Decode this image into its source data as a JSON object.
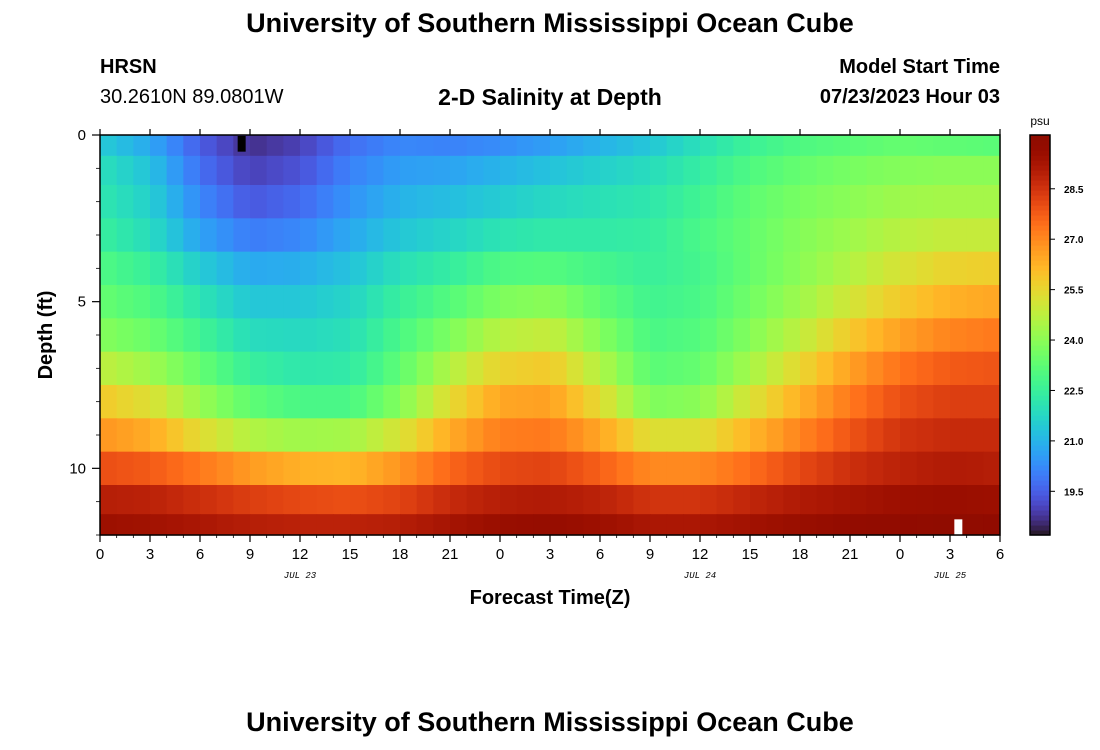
{
  "header": {
    "title": "University of Southern Mississippi Ocean Cube",
    "station": "HRSN",
    "coordinates": "30.2610N  89.0801W",
    "subtitle": "2-D Salinity at Depth",
    "model_start_label": "Model Start Time",
    "model_start_value": "07/23/2023 Hour 03"
  },
  "footer": {
    "title": "University of Southern Mississippi Ocean Cube"
  },
  "chart_data": {
    "type": "heatmap",
    "title": "2-D Salinity at Depth",
    "xlabel": "Forecast Time(Z)",
    "ylabel": "Depth (ft)",
    "x_tick_labels": [
      "0",
      "3",
      "6",
      "9",
      "12",
      "15",
      "18",
      "21",
      "0",
      "3",
      "6",
      "9",
      "12",
      "15",
      "18",
      "21",
      "0",
      "3",
      "6"
    ],
    "x_range_hours": [
      0,
      54
    ],
    "date_labels": [
      {
        "label": "JUL 23",
        "hour": 12
      },
      {
        "label": "JUL 24",
        "hour": 36
      },
      {
        "label": "JUL 25",
        "hour": 51
      }
    ],
    "y_ticks": [
      0,
      5,
      10
    ],
    "y_range": [
      0,
      12
    ],
    "y_inverted": true,
    "colorbar": {
      "unit": "psu",
      "ticks": [
        19.5,
        21.0,
        22.5,
        24.0,
        25.5,
        27.0,
        28.5
      ],
      "tick_labels": [
        "19.5",
        "21.0",
        "22.5",
        "24.0",
        "25.5",
        "27.0",
        "28.5"
      ],
      "range": [
        18.2,
        30.1
      ],
      "colormap": "turbo"
    },
    "grid": false,
    "layer_depths_ft": [
      0.25,
      1,
      2,
      3,
      4,
      5,
      6,
      7,
      8,
      9,
      10,
      11,
      11.75
    ],
    "time_anchor_hours": [
      0,
      3,
      6,
      9,
      12,
      15,
      18,
      21,
      24,
      27,
      30,
      33,
      36,
      39,
      42,
      45,
      48,
      51,
      54
    ],
    "salinity_psu": [
      [
        21.5,
        20.8,
        19.5,
        18.7,
        19.0,
        19.8,
        20.2,
        20.1,
        20.3,
        20.6,
        21.0,
        21.4,
        22.0,
        22.6,
        23.0,
        23.2,
        23.4,
        23.3,
        23.2
      ],
      [
        22.0,
        21.3,
        19.8,
        19.0,
        19.3,
        20.1,
        20.6,
        20.7,
        21.0,
        21.3,
        21.6,
        21.9,
        22.4,
        23.0,
        23.4,
        23.7,
        23.9,
        24.0,
        24.0
      ],
      [
        22.2,
        21.6,
        20.2,
        19.4,
        19.7,
        20.4,
        21.0,
        21.2,
        21.5,
        21.8,
        22.0,
        22.2,
        22.7,
        23.3,
        23.7,
        24.0,
        24.3,
        24.4,
        24.4
      ],
      [
        22.5,
        21.9,
        20.7,
        20.0,
        20.2,
        20.8,
        21.4,
        21.7,
        22.1,
        22.3,
        22.3,
        22.4,
        22.9,
        23.4,
        23.9,
        24.3,
        24.7,
        24.9,
        24.9
      ],
      [
        23.0,
        22.5,
        21.5,
        20.8,
        20.9,
        21.3,
        22.0,
        22.4,
        23.0,
        23.1,
        22.8,
        22.5,
        22.8,
        23.4,
        24.0,
        24.6,
        25.2,
        25.6,
        25.7
      ],
      [
        23.4,
        23.0,
        22.1,
        21.4,
        21.4,
        21.7,
        22.5,
        23.1,
        23.8,
        24.0,
        23.3,
        22.7,
        22.9,
        23.6,
        24.3,
        25.1,
        25.8,
        26.3,
        26.5
      ],
      [
        23.9,
        23.5,
        22.7,
        21.9,
        21.8,
        22.0,
        22.9,
        23.8,
        24.7,
        24.9,
        23.9,
        22.9,
        23.1,
        23.9,
        24.8,
        25.8,
        26.6,
        27.1,
        27.3
      ],
      [
        24.8,
        24.3,
        23.4,
        22.5,
        22.2,
        22.3,
        23.3,
        24.6,
        25.6,
        25.8,
        24.6,
        23.2,
        23.4,
        24.4,
        25.5,
        26.6,
        27.4,
        27.8,
        27.9
      ],
      [
        25.8,
        25.3,
        24.2,
        23.3,
        22.9,
        22.9,
        23.9,
        25.4,
        26.5,
        26.6,
        25.4,
        23.8,
        24.0,
        25.2,
        26.3,
        27.3,
        28.0,
        28.3,
        28.3
      ],
      [
        26.8,
        26.4,
        25.4,
        24.6,
        24.3,
        24.4,
        25.2,
        26.4,
        27.2,
        27.3,
        26.5,
        25.3,
        25.3,
        26.2,
        27.1,
        27.9,
        28.5,
        28.7,
        28.7
      ],
      [
        28.0,
        27.8,
        27.3,
        26.7,
        26.3,
        26.2,
        26.8,
        27.6,
        28.1,
        28.2,
        27.7,
        27.0,
        27.0,
        27.5,
        28.1,
        28.6,
        28.9,
        29.1,
        29.0
      ],
      [
        29.0,
        28.9,
        28.6,
        28.3,
        28.1,
        28.0,
        28.2,
        28.7,
        29.0,
        29.1,
        28.9,
        28.5,
        28.5,
        28.8,
        29.1,
        29.3,
        29.5,
        29.6,
        29.5
      ],
      [
        29.5,
        29.4,
        29.2,
        29.0,
        28.9,
        28.9,
        29.0,
        29.3,
        29.6,
        29.7,
        29.5,
        29.2,
        29.2,
        29.4,
        29.6,
        29.8,
        29.9,
        30.0,
        29.9
      ]
    ],
    "markers": [
      {
        "name": "surface-marker",
        "hour": 8.5,
        "depth_range_ft": [
          0,
          0.5
        ],
        "color": "#000000"
      },
      {
        "name": "bottom-marker",
        "hour": 51.5,
        "depth_range_ft": [
          11.5,
          12
        ],
        "color": "#ffffff"
      }
    ]
  }
}
